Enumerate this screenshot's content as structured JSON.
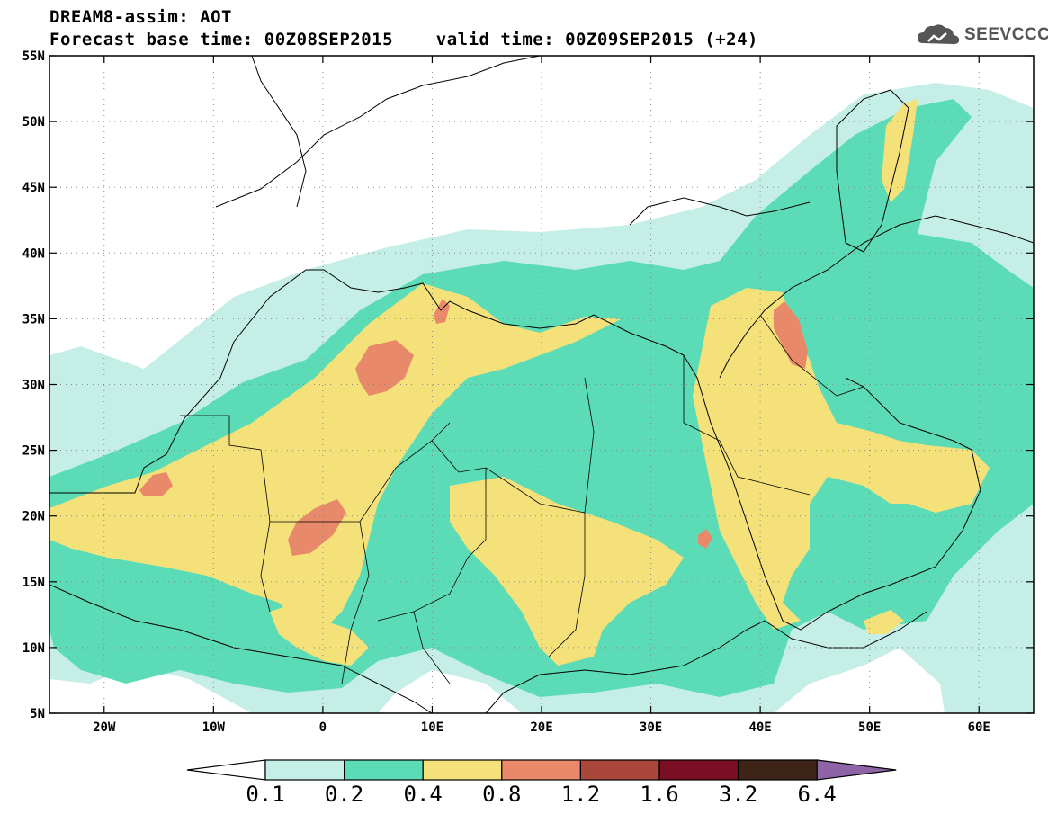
{
  "header": {
    "title_line1": "DREAM8-assim: AOT",
    "title_line2": "Forecast base time: 00Z08SEP2015    valid time: 00Z09SEP2015 (+24)",
    "logo_text": "SEEVCCC",
    "logo_icon": "cloud-icon"
  },
  "map": {
    "lon_range": [
      -25,
      65
    ],
    "lat_range": [
      5,
      55
    ],
    "lon_ticks": [
      {
        "value": -20,
        "label": "20W"
      },
      {
        "value": -10,
        "label": "10W"
      },
      {
        "value": 0,
        "label": "0"
      },
      {
        "value": 10,
        "label": "10E"
      },
      {
        "value": 20,
        "label": "20E"
      },
      {
        "value": 30,
        "label": "30E"
      },
      {
        "value": 40,
        "label": "40E"
      },
      {
        "value": 50,
        "label": "50E"
      },
      {
        "value": 60,
        "label": "60E"
      }
    ],
    "lat_ticks": [
      {
        "value": 5,
        "label": "5N"
      },
      {
        "value": 10,
        "label": "10N"
      },
      {
        "value": 15,
        "label": "15N"
      },
      {
        "value": 20,
        "label": "20N"
      },
      {
        "value": 25,
        "label": "25N"
      },
      {
        "value": 30,
        "label": "30N"
      },
      {
        "value": 35,
        "label": "35N"
      },
      {
        "value": 40,
        "label": "40N"
      },
      {
        "value": 45,
        "label": "45N"
      },
      {
        "value": 50,
        "label": "50N"
      },
      {
        "value": 55,
        "label": "55N"
      }
    ],
    "grid": "dotted"
  },
  "colorbar": {
    "levels": [
      "0.1",
      "0.2",
      "0.4",
      "0.8",
      "1.2",
      "1.6",
      "3.2",
      "6.4"
    ],
    "colors": [
      "#ffffff",
      "#c5efe6",
      "#5bdcb6",
      "#f5e17a",
      "#e88a6a",
      "#a8473a",
      "#7a0f24",
      "#3f2518",
      "#8e64a6"
    ]
  }
}
